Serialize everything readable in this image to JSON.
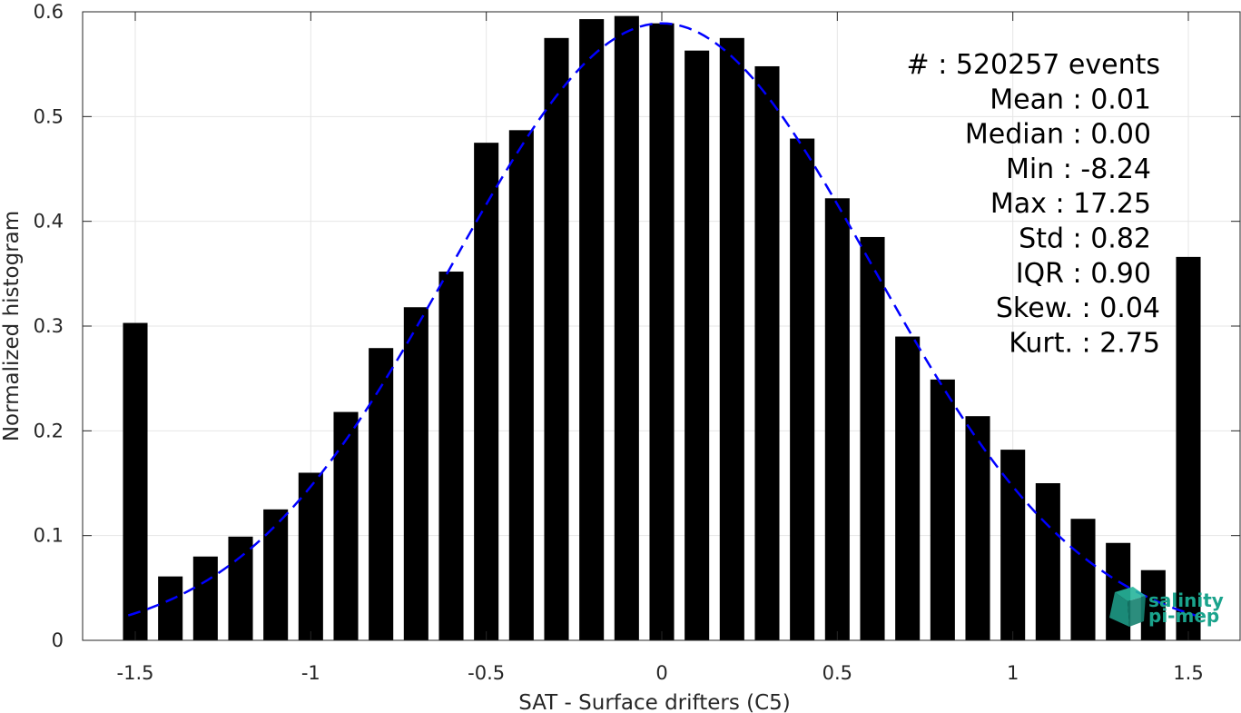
{
  "chart_data": {
    "type": "bar",
    "xlabel": "SAT - Surface drifters (C5)",
    "ylabel": "Normalized histogram",
    "xlim": [
      -1.65,
      1.65
    ],
    "ylim": [
      0,
      0.6
    ],
    "xticks": [
      -1.5,
      -1,
      -0.5,
      0,
      0.5,
      1,
      1.5
    ],
    "xtick_labels": [
      "-1.5",
      "-1",
      "-0.5",
      "0",
      "0.5",
      "1",
      "1.5"
    ],
    "yticks": [
      0,
      0.1,
      0.2,
      0.3,
      0.4,
      0.5,
      0.6
    ],
    "ytick_labels": [
      "0",
      "0.1",
      "0.2",
      "0.3",
      "0.4",
      "0.5",
      "0.6"
    ],
    "grid": true,
    "bar_width": 0.07,
    "bar_color": "#000000",
    "x": [
      -1.5,
      -1.4,
      -1.3,
      -1.2,
      -1.1,
      -1.0,
      -0.9,
      -0.8,
      -0.7,
      -0.6,
      -0.5,
      -0.4,
      -0.3,
      -0.2,
      -0.1,
      0.0,
      0.1,
      0.2,
      0.3,
      0.4,
      0.5,
      0.6,
      0.7,
      0.8,
      0.9,
      1.0,
      1.1,
      1.2,
      1.3,
      1.4,
      1.5
    ],
    "values": [
      0.303,
      0.061,
      0.08,
      0.099,
      0.125,
      0.16,
      0.218,
      0.279,
      0.318,
      0.352,
      0.475,
      0.487,
      0.575,
      0.593,
      0.596,
      0.589,
      0.563,
      0.575,
      0.548,
      0.479,
      0.422,
      0.385,
      0.29,
      0.249,
      0.214,
      0.182,
      0.15,
      0.116,
      0.093,
      0.067,
      0.366
    ],
    "fit_curve": {
      "style": "dashed",
      "color": "#0000ff",
      "x_range": [
        -1.52,
        1.52
      ],
      "peak": 0.589,
      "mean": 0.0,
      "std": 0.6
    },
    "stats": [
      {
        "label": "#  ",
        "value": ": 520257 events"
      },
      {
        "label": "Mean ",
        "value": ": 0.01"
      },
      {
        "label": "Median ",
        "value": ": 0.00"
      },
      {
        "label": "Min ",
        "value": ": -8.24"
      },
      {
        "label": "Max ",
        "value": ": 17.25"
      },
      {
        "label": "Std ",
        "value": ": 0.82"
      },
      {
        "label": "IQR ",
        "value": ": 0.90"
      },
      {
        "label": "Skew. ",
        "value": ": 0.04"
      },
      {
        "label": "Kurt. ",
        "value": ": 2.75"
      }
    ]
  },
  "logo": {
    "line1": "salinity",
    "line2": "pi-mep",
    "color": "#1aa38c"
  }
}
